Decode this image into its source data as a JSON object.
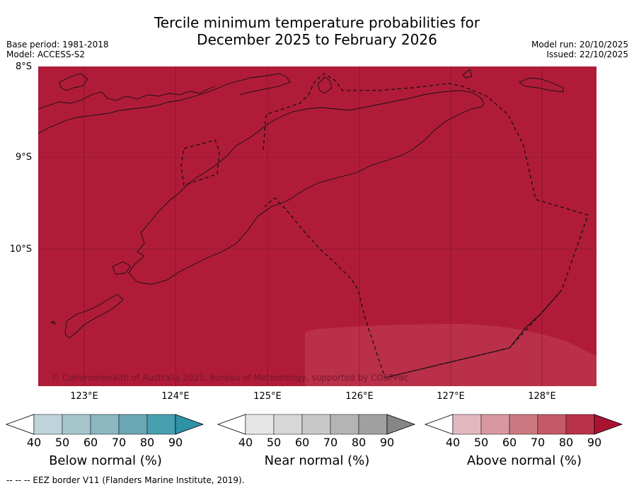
{
  "title": {
    "line1": "Tercile minimum temperature probabilities for",
    "line2": "December 2025 to February 2026"
  },
  "meta": {
    "base_period": "Base period: 1981-2018",
    "model": "Model: ACCESS-S2",
    "model_run": "Model run: 20/10/2025",
    "issued": "Issued: 22/10/2025"
  },
  "axes": {
    "lat_labels": [
      "8°S",
      "9°S",
      "10°S"
    ],
    "lon_labels": [
      "123°E",
      "124°E",
      "125°E",
      "126°E",
      "127°E",
      "128°E"
    ]
  },
  "credit": "© Commonwealth of Australia 2025, Bureau of Meteorology, supported by COSPPac",
  "colorbars": [
    {
      "label": "Below normal (%)",
      "ticks": [
        "40",
        "50",
        "60",
        "70",
        "80",
        "90"
      ],
      "colors": [
        "#ffffff",
        "#bfd4da",
        "#a6c6cc",
        "#8ab7c0",
        "#6aa6b3",
        "#46a0b0",
        "#2f93a6"
      ]
    },
    {
      "label": "Near normal (%)",
      "ticks": [
        "40",
        "50",
        "60",
        "70",
        "80",
        "90"
      ],
      "colors": [
        "#ffffff",
        "#e6e6e6",
        "#d7d7d7",
        "#c8c8c8",
        "#b4b4b4",
        "#a0a0a0",
        "#868686"
      ]
    },
    {
      "label": "Above normal (%)",
      "ticks": [
        "40",
        "50",
        "60",
        "70",
        "80",
        "90"
      ],
      "colors": [
        "#ffffff",
        "#e3b8bf",
        "#d998a1",
        "#cd7880",
        "#c45a66",
        "#b93248",
        "#aa1232"
      ]
    }
  ],
  "map_colors": {
    "above_90": "#b01c38",
    "above_80": "#ba3049"
  },
  "footnote": "--  --  -- EEZ border V11 (Flanders Marine Institute, 2019)."
}
